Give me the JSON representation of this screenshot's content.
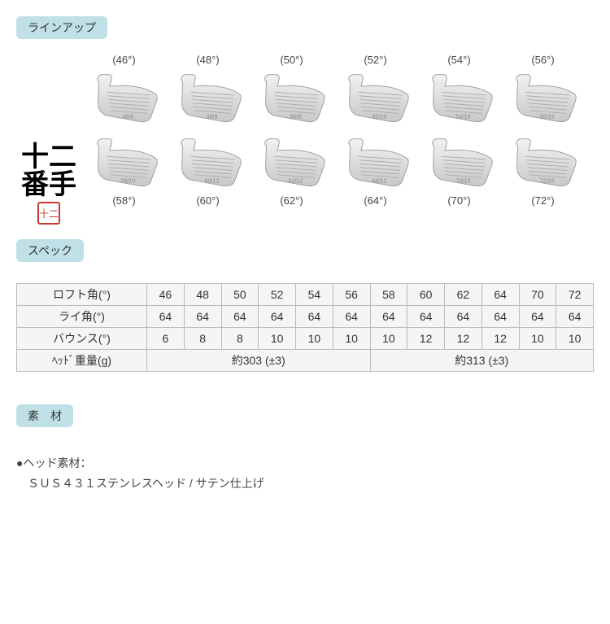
{
  "sections": {
    "lineup_label": "ラインアップ",
    "spec_label": "スペック",
    "material_label": "素　材"
  },
  "lineup": {
    "logo_l1": "十二",
    "logo_l2": "番手",
    "logo_seal": "十二",
    "top": [
      {
        "deg": "(46°)",
        "engr": "46/6"
      },
      {
        "deg": "(48°)",
        "engr": "48/8"
      },
      {
        "deg": "(50°)",
        "engr": "50/8"
      },
      {
        "deg": "(52°)",
        "engr": "52/10"
      },
      {
        "deg": "(54°)",
        "engr": "54/10"
      },
      {
        "deg": "(56°)",
        "engr": "56/10"
      }
    ],
    "bottom": [
      {
        "deg": "(58°)",
        "engr": "58/10"
      },
      {
        "deg": "(60°)",
        "engr": "60/12"
      },
      {
        "deg": "(62°)",
        "engr": "62/12"
      },
      {
        "deg": "(64°)",
        "engr": "64/12"
      },
      {
        "deg": "(70°)",
        "engr": "70/10"
      },
      {
        "deg": "(72°)",
        "engr": "72/10"
      }
    ]
  },
  "spec": {
    "rows": [
      {
        "label": "ロフト角(°)",
        "cells": [
          "46",
          "48",
          "50",
          "52",
          "54",
          "56",
          "58",
          "60",
          "62",
          "64",
          "70",
          "72"
        ]
      },
      {
        "label": "ライ角(°)",
        "cells": [
          "64",
          "64",
          "64",
          "64",
          "64",
          "64",
          "64",
          "64",
          "64",
          "64",
          "64",
          "64"
        ]
      },
      {
        "label": "バウンス(°)",
        "cells": [
          "6",
          "8",
          "8",
          "10",
          "10",
          "10",
          "10",
          "12",
          "12",
          "12",
          "10",
          "10"
        ]
      }
    ],
    "weight_row": {
      "label": "ﾍｯﾄﾞ重量(g)",
      "left": "約303 (±3)",
      "right": "約313 (±3)"
    }
  },
  "material": {
    "line1": "●ヘッド素材：",
    "line2": "　ＳＵＳ４３１ステンレスヘッド / サテン仕上げ"
  },
  "styling": {
    "club_head": {
      "fill_top": "#f2f2f2",
      "fill_bot": "#c8c8c8",
      "stroke": "#999",
      "groove": "#aaa",
      "text": "#888"
    }
  }
}
